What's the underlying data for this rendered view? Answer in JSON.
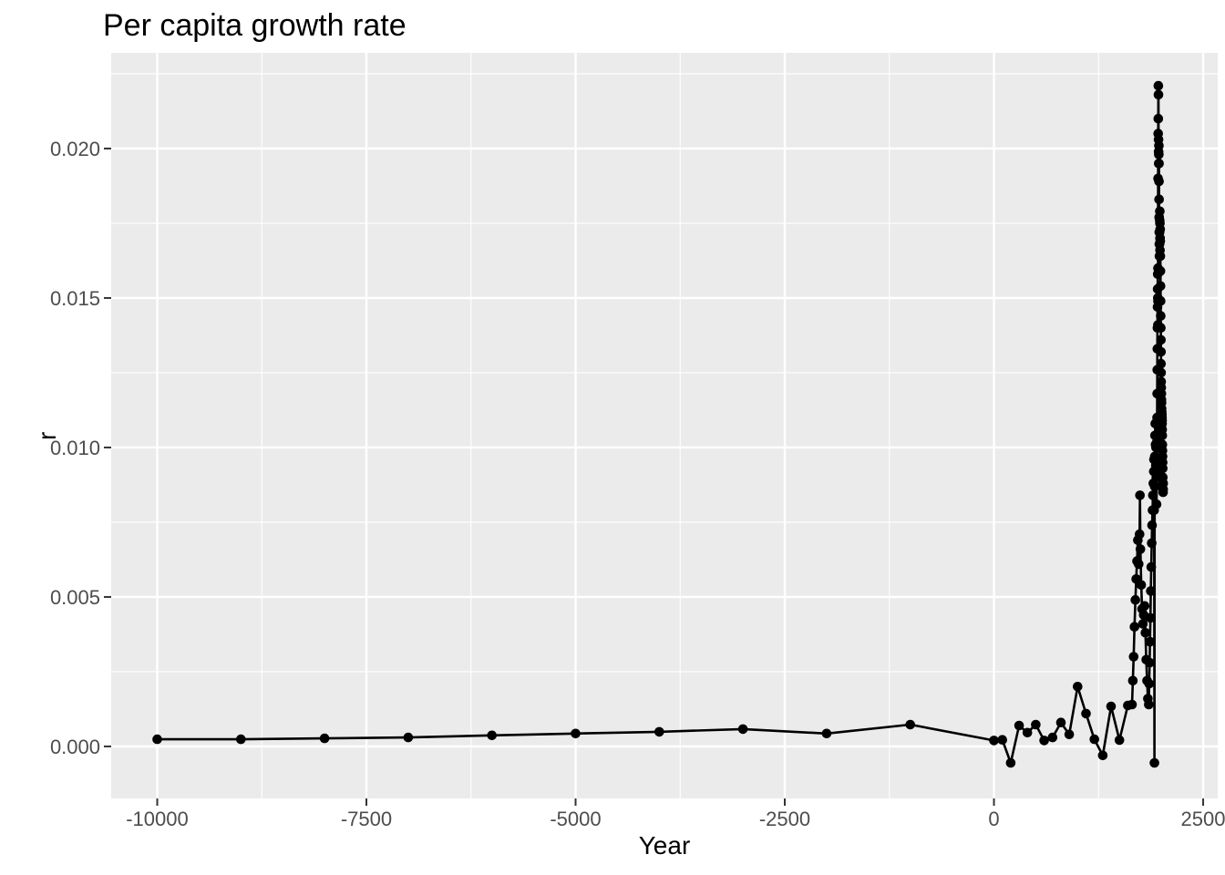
{
  "chart_data": {
    "type": "line",
    "title": "Per capita growth rate",
    "xlabel": "Year",
    "ylabel": "r",
    "legend_position": "none",
    "grid": "major-and-minor",
    "x_axis": {
      "range": [
        -10550,
        2674
      ],
      "ticks": [
        -10000,
        -7500,
        -5000,
        -2500,
        0,
        2500
      ],
      "tick_labels": [
        "-10000",
        "-7500",
        "-5000",
        "-2500",
        "0",
        "2500"
      ],
      "minor_ticks": [
        -8750,
        -6250,
        -3750,
        -1250,
        1250
      ]
    },
    "y_axis": {
      "range": [
        -0.00174,
        0.0232
      ],
      "ticks": [
        0,
        0.005,
        0.01,
        0.015,
        0.02
      ],
      "tick_labels": [
        "0.000",
        "0.005",
        "0.010",
        "0.015",
        "0.020"
      ],
      "minor_ticks": [
        0.0025,
        0.0075,
        0.0125,
        0.0175,
        0.0225
      ]
    },
    "style": {
      "figure_background": "#FFFFFF",
      "panel_background": "#EBEBEB",
      "grid_color": "#FFFFFF",
      "line_color": "#000000",
      "point_color": "#000000",
      "tick_mark_color": "#333333",
      "tick_label_color": "#4D4D4D",
      "title_color": "#000000"
    },
    "series": [
      {
        "name": "r",
        "marker": "point",
        "points": [
          [
            -10000,
            0.00024
          ],
          [
            -9000,
            0.00024
          ],
          [
            -8000,
            0.00027
          ],
          [
            -7000,
            0.0003
          ],
          [
            -6000,
            0.00037
          ],
          [
            -5000,
            0.00043
          ],
          [
            -4000,
            0.00049
          ],
          [
            -3000,
            0.00058
          ],
          [
            -2000,
            0.00043
          ],
          [
            -1000,
            0.00073
          ],
          [
            0,
            0.0002
          ],
          [
            100,
            0.00022
          ],
          [
            200,
            -0.00055
          ],
          [
            300,
            0.0007
          ],
          [
            400,
            0.00046
          ],
          [
            500,
            0.00073
          ],
          [
            600,
            0.0002
          ],
          [
            700,
            0.0003
          ],
          [
            800,
            0.0008
          ],
          [
            900,
            0.0004
          ],
          [
            1000,
            0.002
          ],
          [
            1100,
            0.0011
          ],
          [
            1200,
            0.00024
          ],
          [
            1300,
            -0.0003
          ],
          [
            1400,
            0.00134
          ],
          [
            1500,
            0.00021
          ],
          [
            1600,
            0.00137
          ],
          [
            1650,
            0.0014
          ],
          [
            1660,
            0.0022
          ],
          [
            1670,
            0.003
          ],
          [
            1680,
            0.004
          ],
          [
            1690,
            0.0049
          ],
          [
            1700,
            0.0056
          ],
          [
            1710,
            0.0062
          ],
          [
            1720,
            0.0069
          ],
          [
            1730,
            0.0061
          ],
          [
            1740,
            0.0071
          ],
          [
            1745,
            0.0084
          ],
          [
            1750,
            0.0066
          ],
          [
            1760,
            0.0054
          ],
          [
            1770,
            0.0046
          ],
          [
            1780,
            0.0041
          ],
          [
            1790,
            0.0044
          ],
          [
            1800,
            0.0047
          ],
          [
            1810,
            0.0038
          ],
          [
            1820,
            0.0029
          ],
          [
            1830,
            0.0022
          ],
          [
            1840,
            0.0016
          ],
          [
            1850,
            0.0014
          ],
          [
            1855,
            0.0021
          ],
          [
            1860,
            0.0028
          ],
          [
            1865,
            0.0035
          ],
          [
            1870,
            0.0043
          ],
          [
            1875,
            0.0052
          ],
          [
            1880,
            0.006
          ],
          [
            1885,
            0.0068
          ],
          [
            1890,
            0.0074
          ],
          [
            1895,
            0.0079
          ],
          [
            1900,
            0.0084
          ],
          [
            1905,
            0.0088
          ],
          [
            1910,
            0.0092
          ],
          [
            1913,
            0.0096
          ],
          [
            1915,
            0.0079
          ],
          [
            1918,
            -0.00055
          ],
          [
            1920,
            0.0087
          ],
          [
            1922,
            0.0097
          ],
          [
            1925,
            0.0104
          ],
          [
            1928,
            0.0108
          ],
          [
            1931,
            0.0101
          ],
          [
            1934,
            0.0094
          ],
          [
            1937,
            0.01
          ],
          [
            1940,
            0.009
          ],
          [
            1943,
            0.0081
          ],
          [
            1946,
            0.0092
          ],
          [
            1948,
            0.0102
          ],
          [
            1950,
            0.011
          ],
          [
            1951,
            0.0118
          ],
          [
            1952,
            0.0126
          ],
          [
            1953,
            0.0133
          ],
          [
            1954,
            0.014
          ],
          [
            1955,
            0.0147
          ],
          [
            1956,
            0.0153
          ],
          [
            1957,
            0.0158
          ],
          [
            1958,
            0.015
          ],
          [
            1959,
            0.0141
          ],
          [
            1960,
            0.0149
          ],
          [
            1961,
            0.016
          ],
          [
            1962,
            0.019
          ],
          [
            1963,
            0.0205
          ],
          [
            1964,
            0.021
          ],
          [
            1965,
            0.0221
          ],
          [
            1966,
            0.0218
          ],
          [
            1967,
            0.0203
          ],
          [
            1968,
            0.0199
          ],
          [
            1969,
            0.0195
          ],
          [
            1970,
            0.0198
          ],
          [
            1971,
            0.0201
          ],
          [
            1972,
            0.0195
          ],
          [
            1973,
            0.0189
          ],
          [
            1974,
            0.0183
          ],
          [
            1975,
            0.0177
          ],
          [
            1976,
            0.0172
          ],
          [
            1977,
            0.0168
          ],
          [
            1978,
            0.0164
          ],
          [
            1979,
            0.0168
          ],
          [
            1980,
            0.0172
          ],
          [
            1981,
            0.0176
          ],
          [
            1982,
            0.0179
          ],
          [
            1983,
            0.0175
          ],
          [
            1984,
            0.017
          ],
          [
            1985,
            0.0166
          ],
          [
            1986,
            0.017
          ],
          [
            1987,
            0.0173
          ],
          [
            1988,
            0.0169
          ],
          [
            1989,
            0.0164
          ],
          [
            1990,
            0.0159
          ],
          [
            1991,
            0.0154
          ],
          [
            1992,
            0.0149
          ],
          [
            1993,
            0.0144
          ],
          [
            1994,
            0.014
          ],
          [
            1995,
            0.0136
          ],
          [
            1996,
            0.0132
          ],
          [
            1997,
            0.0128
          ],
          [
            1998,
            0.0125
          ],
          [
            1999,
            0.0122
          ],
          [
            2000,
            0.012
          ],
          [
            2001,
            0.0118
          ],
          [
            2002,
            0.0116
          ],
          [
            2003,
            0.0115
          ],
          [
            2004,
            0.0113
          ],
          [
            2005,
            0.0112
          ],
          [
            2006,
            0.0111
          ],
          [
            2007,
            0.0111
          ],
          [
            2008,
            0.011
          ],
          [
            2009,
            0.0109
          ],
          [
            2010,
            0.0108
          ],
          [
            2011,
            0.0106
          ],
          [
            2012,
            0.0104
          ],
          [
            2013,
            0.0101
          ],
          [
            2014,
            0.0099
          ],
          [
            2015,
            0.0097
          ],
          [
            2016,
            0.0095
          ],
          [
            2017,
            0.0093
          ],
          [
            2018,
            0.009
          ],
          [
            2019,
            0.0088
          ],
          [
            2020,
            0.0086
          ],
          [
            2021,
            0.0085
          ],
          [
            2022,
            0.0086
          ],
          [
            2023,
            0.0088
          ]
        ]
      }
    ]
  }
}
